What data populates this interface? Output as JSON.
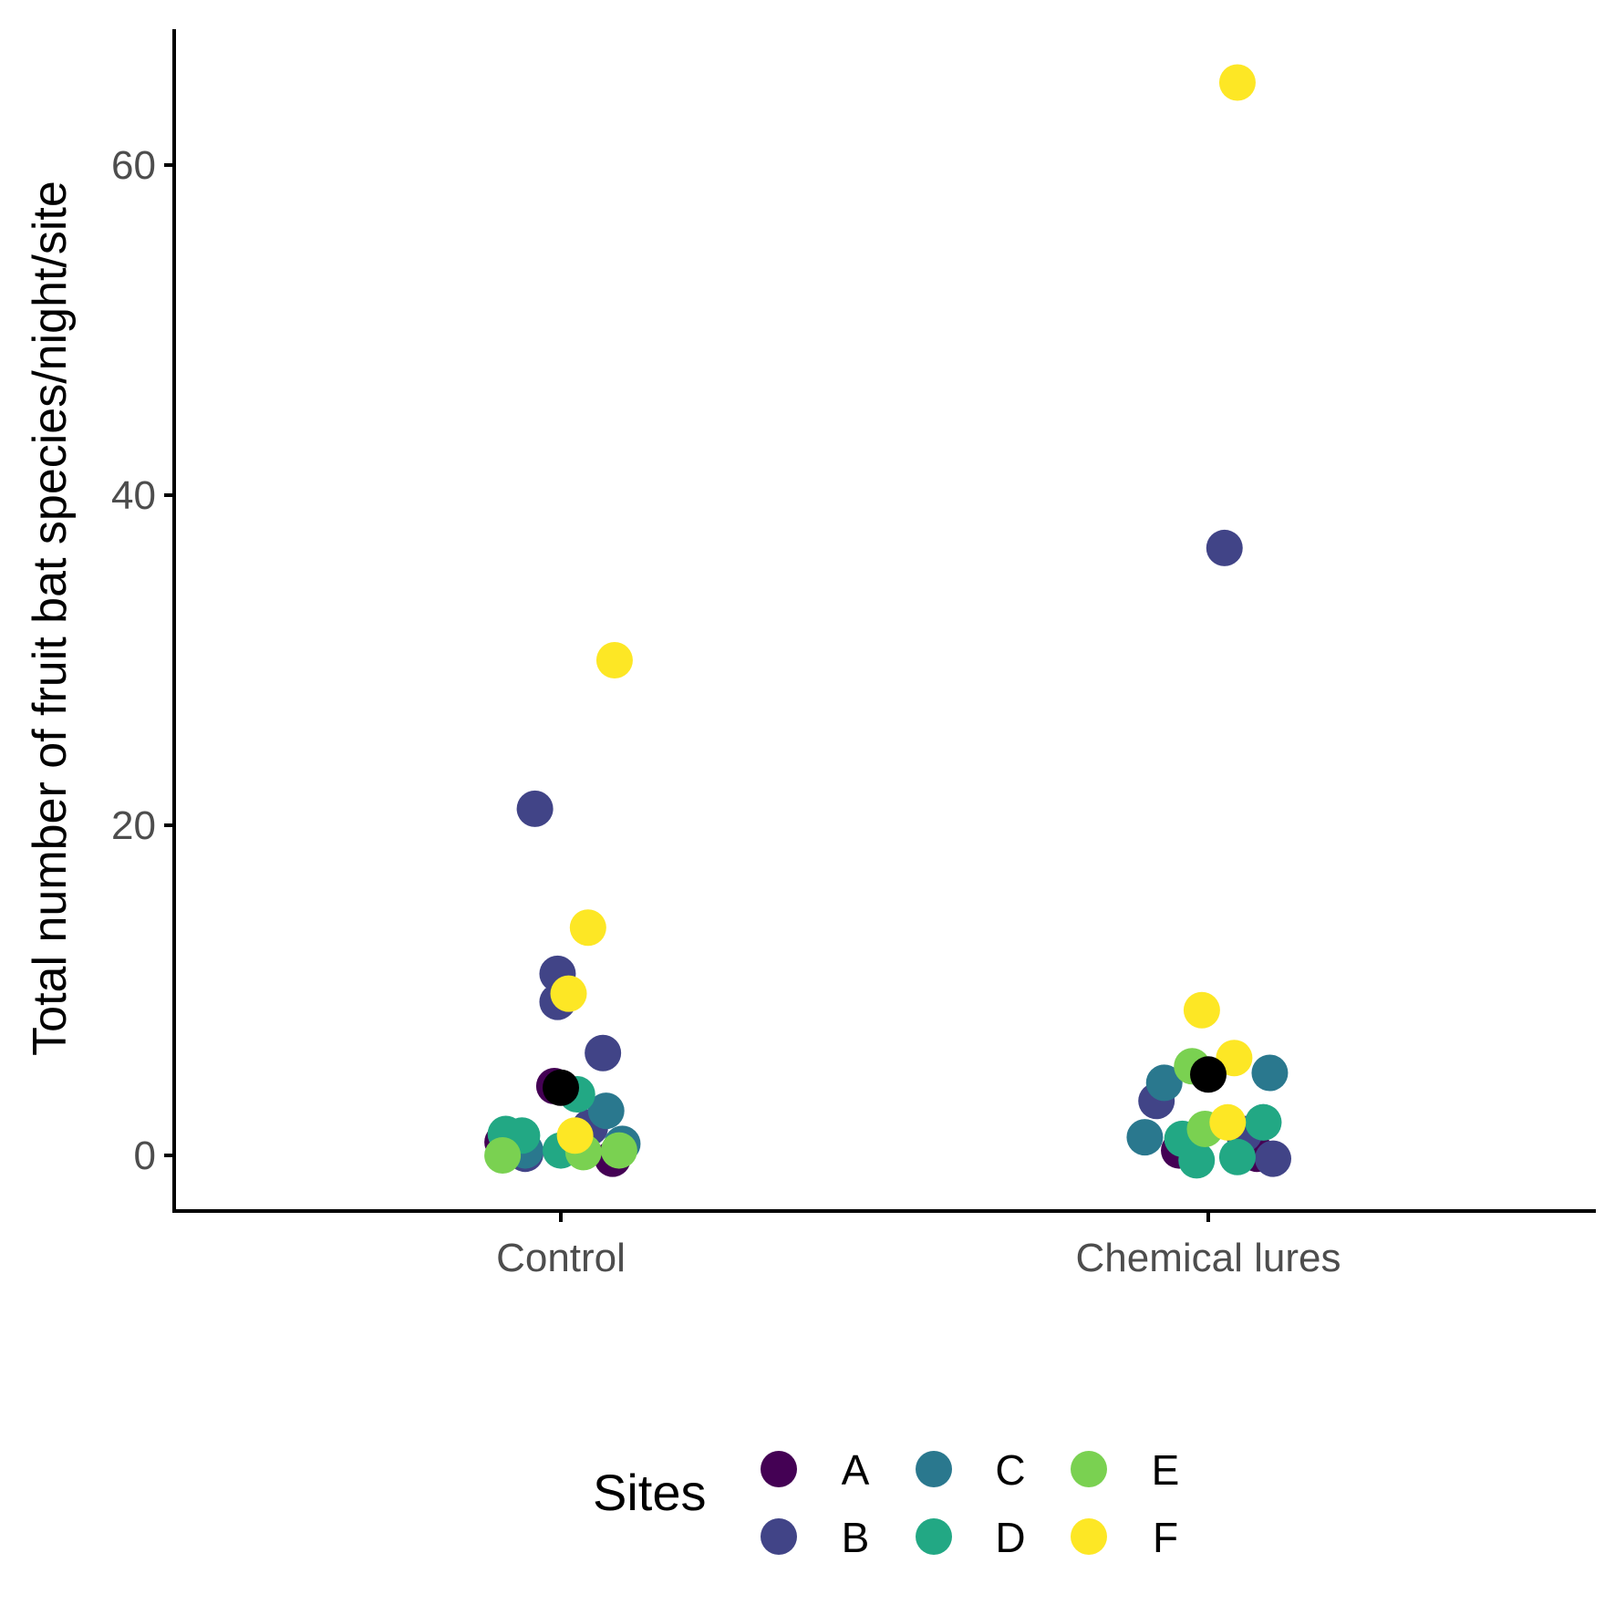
{
  "chart_data": {
    "type": "scatter",
    "title": "",
    "xlabel": "",
    "ylabel": "Total number of fruit bat species/night/site",
    "categories": [
      "Control",
      "Chemical lures"
    ],
    "yticks": [
      0,
      20,
      40,
      60
    ],
    "ylim": [
      -3.3,
      68
    ],
    "grid": false,
    "legend": {
      "title": "Sites",
      "position": "bottom",
      "entries": [
        {
          "label": "A",
          "color": "#440154"
        },
        {
          "label": "B",
          "color": "#414487"
        },
        {
          "label": "C",
          "color": "#2A788E"
        },
        {
          "label": "D",
          "color": "#22A884"
        },
        {
          "label": "E",
          "color": "#7AD151"
        },
        {
          "label": "F",
          "color": "#FDE725"
        }
      ]
    },
    "mean_color": "#000000",
    "points": [
      {
        "category": "Control",
        "jitter": -0.09,
        "y": 0.8,
        "site": "A"
      },
      {
        "category": "Control",
        "jitter": -0.01,
        "y": 4.2,
        "site": "A"
      },
      {
        "category": "Control",
        "jitter": 0.08,
        "y": -0.2,
        "site": "A"
      },
      {
        "category": "Control",
        "jitter": -0.04,
        "y": 21,
        "site": "B"
      },
      {
        "category": "Control",
        "jitter": -0.005,
        "y": 11,
        "site": "B"
      },
      {
        "category": "Control",
        "jitter": -0.005,
        "y": 9.3,
        "site": "B"
      },
      {
        "category": "Control",
        "jitter": 0.065,
        "y": 6.2,
        "site": "B"
      },
      {
        "category": "Control",
        "jitter": 0.045,
        "y": 1.7,
        "site": "B"
      },
      {
        "category": "Control",
        "jitter": -0.055,
        "y": 0.1,
        "site": "B"
      },
      {
        "category": "Control",
        "jitter": 0.07,
        "y": 2.7,
        "site": "C"
      },
      {
        "category": "Control",
        "jitter": 0.095,
        "y": 0.7,
        "site": "C"
      },
      {
        "category": "Control",
        "jitter": -0.055,
        "y": 0.3,
        "site": "C"
      },
      {
        "category": "Control",
        "jitter": 0.025,
        "y": 3.7,
        "site": "D"
      },
      {
        "category": "Control",
        "jitter": -0.085,
        "y": 1.3,
        "site": "D"
      },
      {
        "category": "Control",
        "jitter": -0.06,
        "y": 1.2,
        "site": "D"
      },
      {
        "category": "Control",
        "jitter": 0.0,
        "y": 0.3,
        "site": "D"
      },
      {
        "category": "Control",
        "jitter": -0.09,
        "y": 0.0,
        "site": "E"
      },
      {
        "category": "Control",
        "jitter": 0.035,
        "y": 0.2,
        "site": "E"
      },
      {
        "category": "Control",
        "jitter": 0.09,
        "y": 0.3,
        "site": "E"
      },
      {
        "category": "Control",
        "jitter": 0.083,
        "y": 30,
        "site": "F"
      },
      {
        "category": "Control",
        "jitter": 0.042,
        "y": 13.8,
        "site": "F"
      },
      {
        "category": "Control",
        "jitter": 0.012,
        "y": 9.8,
        "site": "F"
      },
      {
        "category": "Control",
        "jitter": 0.022,
        "y": 1.2,
        "site": "F"
      },
      {
        "category": "Chemical lures",
        "jitter": -0.045,
        "y": 0.3,
        "site": "A"
      },
      {
        "category": "Chemical lures",
        "jitter": 0.075,
        "y": 0.1,
        "site": "A"
      },
      {
        "category": "Chemical lures",
        "jitter": 0.025,
        "y": 36.8,
        "site": "B"
      },
      {
        "category": "Chemical lures",
        "jitter": -0.08,
        "y": 3.3,
        "site": "B"
      },
      {
        "category": "Chemical lures",
        "jitter": 0.1,
        "y": -0.2,
        "site": "B"
      },
      {
        "category": "Chemical lures",
        "jitter": 0.055,
        "y": 1.3,
        "site": "B"
      },
      {
        "category": "Chemical lures",
        "jitter": -0.068,
        "y": 4.4,
        "site": "C"
      },
      {
        "category": "Chemical lures",
        "jitter": 0.095,
        "y": 5.0,
        "site": "C"
      },
      {
        "category": "Chemical lures",
        "jitter": -0.098,
        "y": 1.1,
        "site": "C"
      },
      {
        "category": "Chemical lures",
        "jitter": 0.085,
        "y": 2.0,
        "site": "C"
      },
      {
        "category": "Chemical lures",
        "jitter": -0.04,
        "y": 1.0,
        "site": "D"
      },
      {
        "category": "Chemical lures",
        "jitter": -0.018,
        "y": -0.3,
        "site": "D"
      },
      {
        "category": "Chemical lures",
        "jitter": 0.045,
        "y": -0.1,
        "site": "D"
      },
      {
        "category": "Chemical lures",
        "jitter": 0.085,
        "y": 2.0,
        "site": "D"
      },
      {
        "category": "Chemical lures",
        "jitter": -0.025,
        "y": 5.4,
        "site": "E"
      },
      {
        "category": "Chemical lures",
        "jitter": -0.005,
        "y": 1.6,
        "site": "E"
      },
      {
        "category": "Chemical lures",
        "jitter": 0.045,
        "y": 65.0,
        "site": "F"
      },
      {
        "category": "Chemical lures",
        "jitter": -0.01,
        "y": 8.8,
        "site": "F"
      },
      {
        "category": "Chemical lures",
        "jitter": 0.04,
        "y": 5.9,
        "site": "F"
      },
      {
        "category": "Chemical lures",
        "jitter": 0.03,
        "y": 2.0,
        "site": "F"
      }
    ],
    "means": [
      {
        "category": "Control",
        "y": 4.1
      },
      {
        "category": "Chemical lures",
        "y": 4.9
      }
    ]
  }
}
